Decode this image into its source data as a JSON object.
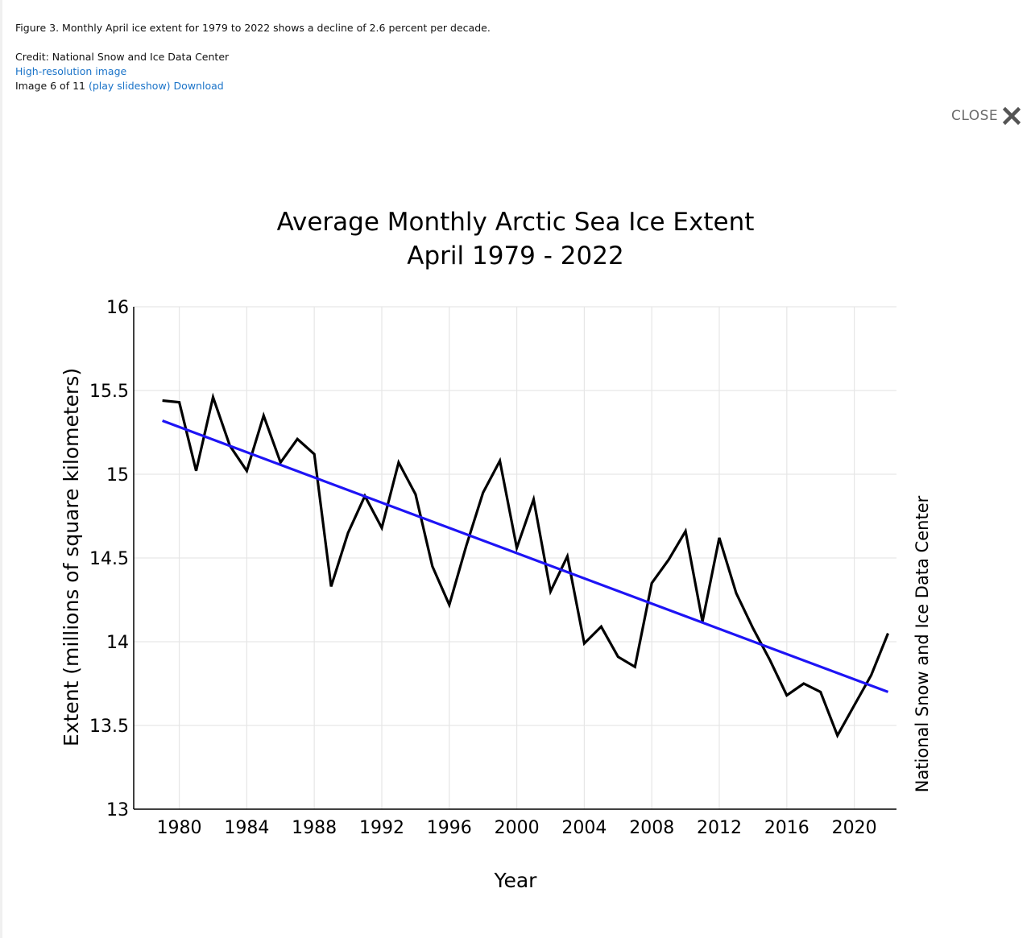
{
  "caption": {
    "figure_text": "Figure 3. Monthly April ice extent for 1979 to 2022 shows a decline of 2.6 percent per decade.",
    "credit_text": "Credit: National Snow and Ice Data Center",
    "hires_link": "High-resolution image",
    "image_counter": "Image 6 of 11",
    "slideshow_link": "(play slideshow)",
    "download_link": "Download"
  },
  "close_label": "CLOSE",
  "colors": {
    "link": "#1a73c8",
    "data_line": "#000000",
    "trend_line": "#1e14f5",
    "grid": "#e6e6e6"
  },
  "chart_data": {
    "type": "line",
    "title": "Average Monthly Arctic Sea Ice Extent",
    "subtitle": "April 1979 - 2022",
    "xlabel": "Year",
    "ylabel": "Extent (millions of square kilometers)",
    "side_credit": "National Snow and Ice Data Center",
    "xlim": [
      1977.3,
      2022.5
    ],
    "ylim": [
      13,
      16
    ],
    "x_ticks": [
      1980,
      1984,
      1988,
      1992,
      1996,
      2000,
      2004,
      2008,
      2012,
      2016,
      2020
    ],
    "x_tick_labels": [
      "1980",
      "1984",
      "1988",
      "1992",
      "1996",
      "2000",
      "2004",
      "2008",
      "2012",
      "2016",
      "2020"
    ],
    "y_ticks": [
      13,
      13.5,
      14,
      14.5,
      15,
      15.5,
      16
    ],
    "y_tick_labels": [
      "13",
      "13.5",
      "14",
      "14.5",
      "15",
      "15.5",
      "16"
    ],
    "grid": true,
    "series": [
      {
        "x": [
          1979,
          1980,
          1981,
          1982,
          1983,
          1984,
          1985,
          1986,
          1987,
          1988,
          1989,
          1990,
          1991,
          1992,
          1993,
          1994,
          1995,
          1996,
          1997,
          1998,
          1999,
          2000,
          2001,
          2002,
          2003,
          2004,
          2005,
          2006,
          2007,
          2008,
          2009,
          2010,
          2011,
          2012,
          2013,
          2014,
          2015,
          2016,
          2017,
          2018,
          2019,
          2020,
          2021,
          2022
        ],
        "values": [
          15.44,
          15.43,
          15.02,
          15.46,
          15.17,
          15.02,
          15.35,
          15.07,
          15.21,
          15.12,
          14.33,
          14.65,
          14.87,
          14.68,
          15.07,
          14.88,
          14.45,
          14.22,
          14.57,
          14.89,
          15.08,
          14.56,
          14.85,
          14.3,
          14.51,
          13.99,
          14.09,
          13.91,
          13.85,
          14.35,
          14.49,
          14.66,
          14.12,
          14.62,
          14.29,
          14.08,
          13.89,
          13.68,
          13.75,
          13.7,
          13.44,
          13.62,
          13.8,
          14.05
        ]
      },
      {
        "x": [
          1979,
          2022
        ],
        "values": [
          15.32,
          13.7
        ]
      }
    ]
  }
}
